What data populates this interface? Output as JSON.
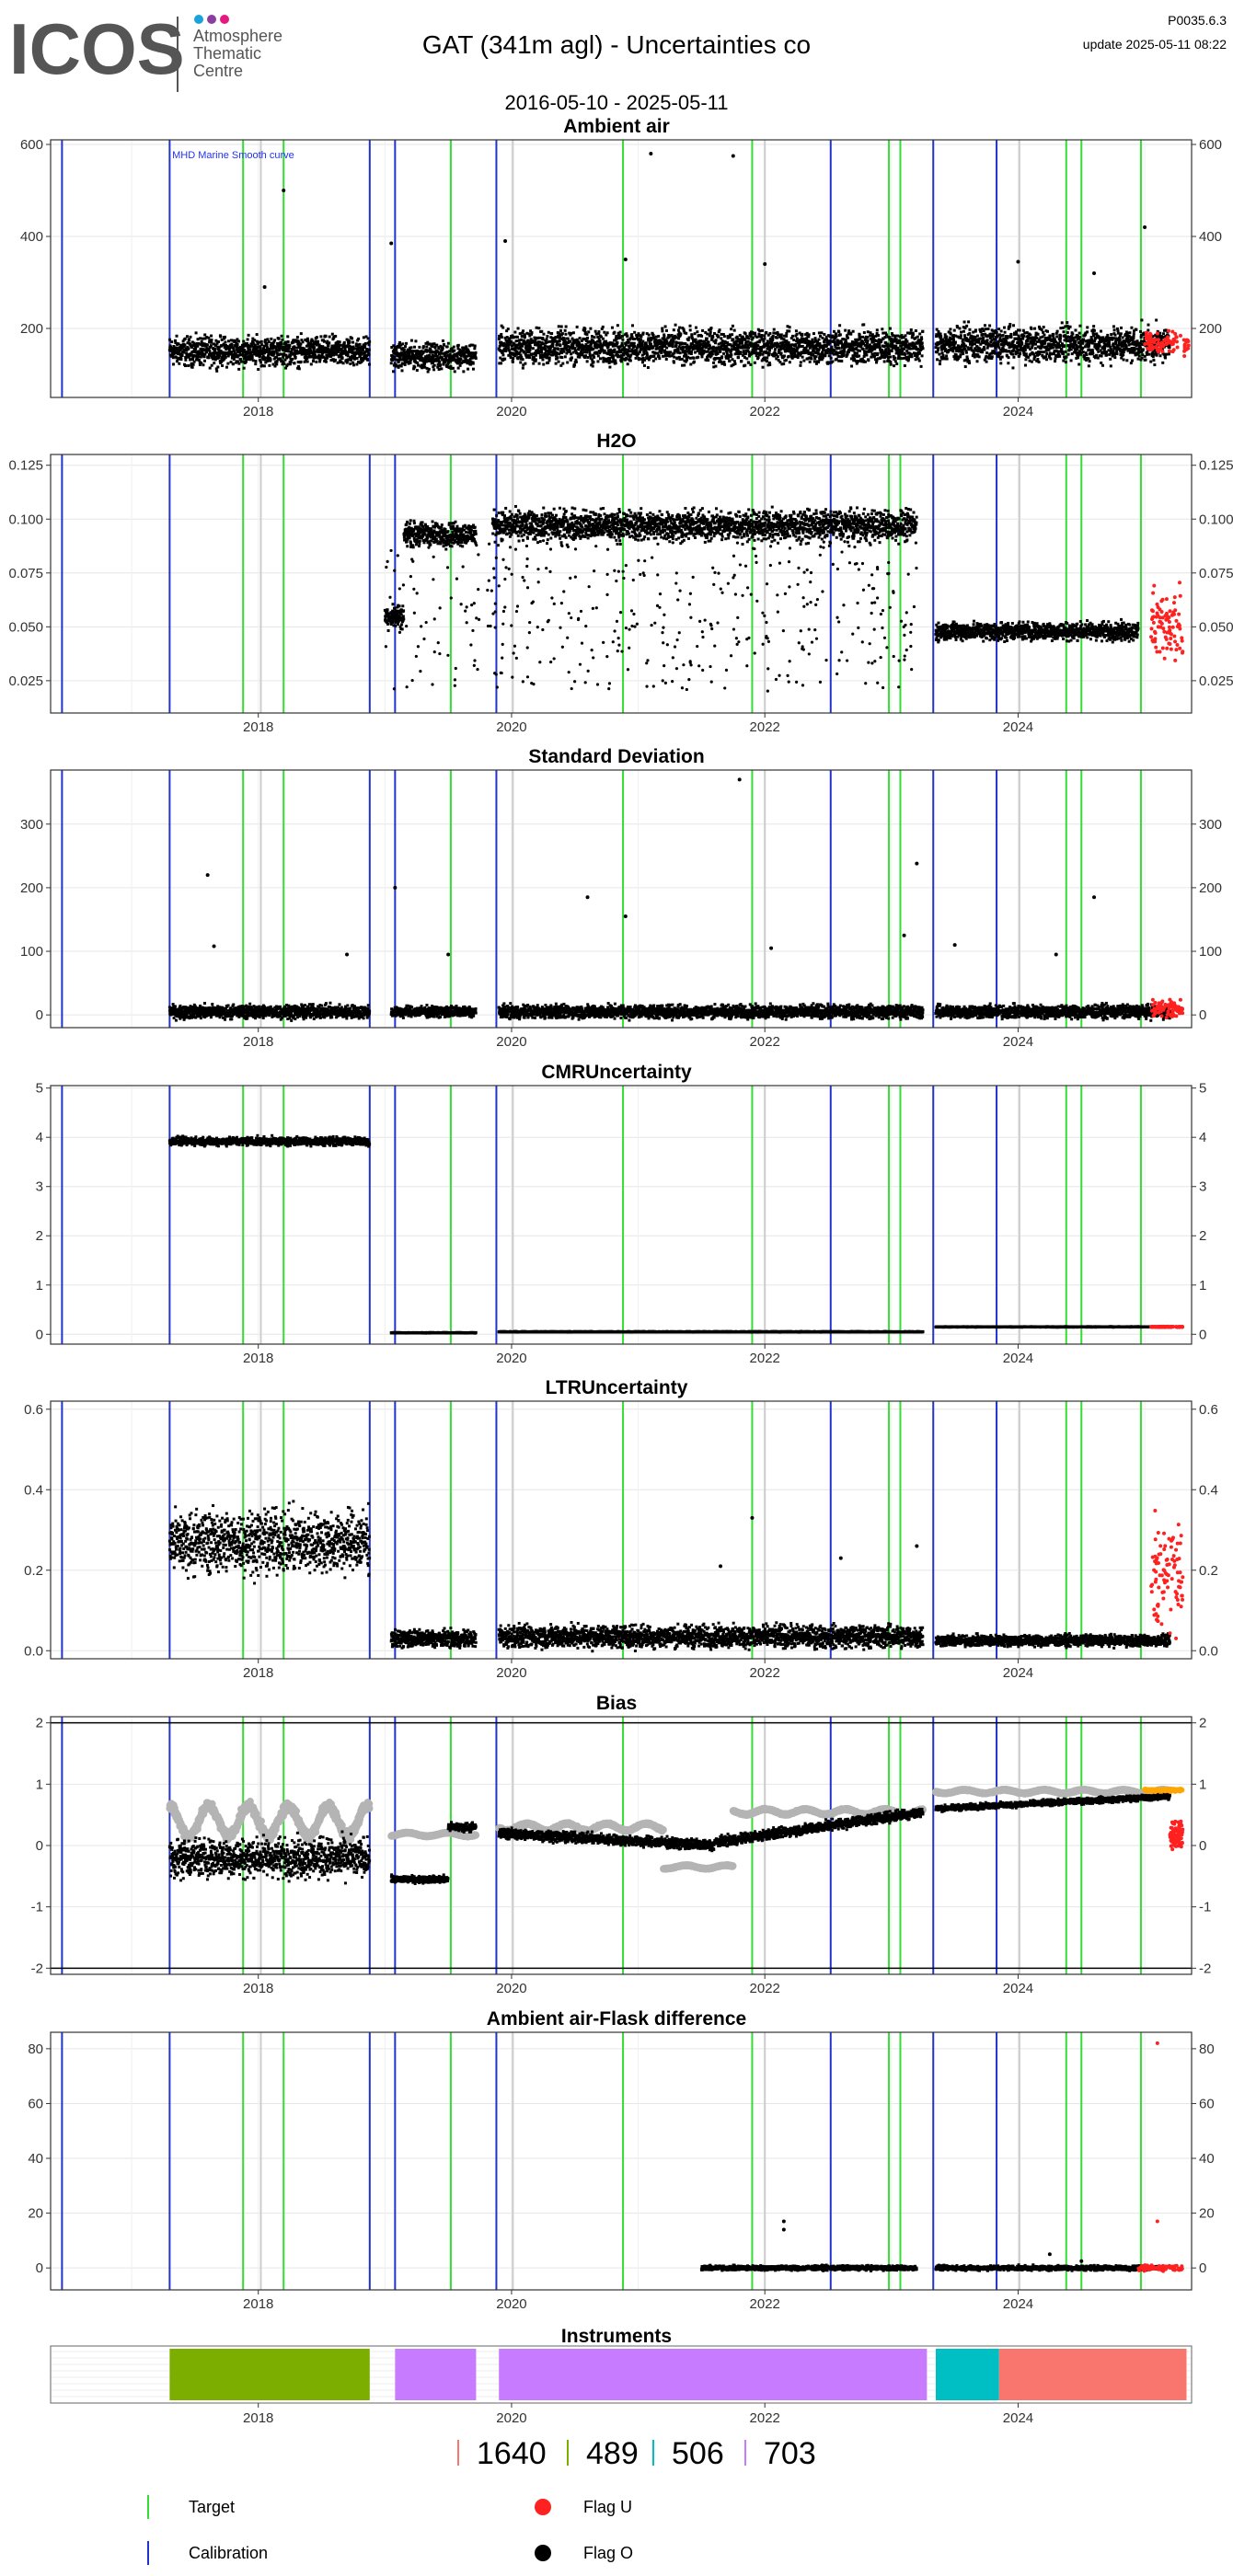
{
  "header": {
    "logo_text": "ICOS",
    "logo_sub1": "Atmosphere",
    "logo_sub2": "Thematic",
    "logo_sub3": "Centre",
    "title": "GAT  (341m agl) - Uncertainties co",
    "date_range": "2016-05-10 - 2025-05-11",
    "version": "P0035.6.3",
    "update": "update  2025-05-11 08:22"
  },
  "colors": {
    "calibration": "#2233cc",
    "target": "#33dd33",
    "grey_line": "#cccccc",
    "flag_u": "#ff2020",
    "flag_o": "#000000",
    "orange": "#ffa500",
    "grey_series": "#b4b4b4"
  },
  "chart_data": [
    {
      "type": "scatter",
      "title": "Ambient air",
      "annotation": "MHD Marine Smooth curve",
      "yticks": [
        200,
        400,
        600
      ],
      "ylim": [
        50,
        610
      ],
      "xticks": [
        "2018",
        "2020",
        "2022",
        "2024"
      ],
      "series_profile": [
        {
          "start": 2017.3,
          "end": 2018.88,
          "base": 150,
          "spread": 45,
          "spikes": [
            [
              2018.2,
              500
            ],
            [
              2018.05,
              290
            ]
          ]
        },
        {
          "start": 2019.05,
          "end": 2019.72,
          "base": 140,
          "spread": 40,
          "spikes": [
            [
              2019.05,
              385
            ]
          ]
        },
        {
          "start": 2019.9,
          "end": 2023.25,
          "base": 160,
          "spread": 55,
          "spikes": [
            [
              2021.1,
              580
            ],
            [
              2021.75,
              575
            ],
            [
              2019.95,
              390
            ],
            [
              2020.9,
              350
            ],
            [
              2022.0,
              340
            ]
          ]
        },
        {
          "start": 2023.35,
          "end": 2025.2,
          "base": 165,
          "spread": 55,
          "spikes": [
            [
              2024.0,
              345
            ],
            [
              2025.0,
              420
            ],
            [
              2024.6,
              320
            ]
          ]
        }
      ],
      "flag_u": {
        "start": 2025.0,
        "end": 2025.35,
        "base": 170,
        "spread": 35
      }
    },
    {
      "type": "scatter",
      "title": "H2O",
      "yticks": [
        0.025,
        0.05,
        0.075,
        0.1,
        0.125
      ],
      "ytick_labels": [
        "0.025",
        "0.050",
        "0.075",
        "0.100",
        "0.125"
      ],
      "ylim": [
        0.01,
        0.13
      ],
      "xticks": [
        "2018",
        "2020",
        "2022",
        "2024"
      ],
      "series_profile": [
        {
          "start": 2019.0,
          "end": 2019.15,
          "base": 0.055,
          "spread": 0.008
        },
        {
          "start": 2019.15,
          "end": 2019.72,
          "base": 0.093,
          "spread": 0.008
        },
        {
          "start": 2019.85,
          "end": 2023.2,
          "base": 0.097,
          "spread": 0.01
        },
        {
          "start": 2023.35,
          "end": 2024.95,
          "base": 0.048,
          "spread": 0.006
        }
      ],
      "sparse_profile": {
        "start": 2019.0,
        "end": 2023.2,
        "low": 0.02,
        "high": 0.09
      },
      "flag_u": {
        "start": 2025.05,
        "end": 2025.3,
        "base": 0.05,
        "spread": 0.025
      }
    },
    {
      "type": "scatter",
      "title": "Standard Deviation",
      "yticks": [
        0,
        100,
        200,
        300
      ],
      "ylim": [
        -20,
        385
      ],
      "xticks": [
        "2018",
        "2020",
        "2022",
        "2024"
      ],
      "series_profile": [
        {
          "start": 2017.3,
          "end": 2018.88,
          "base": 5,
          "spread": 15,
          "spikes": [
            [
              2017.6,
              220
            ],
            [
              2017.65,
              108
            ],
            [
              2018.7,
              95
            ]
          ]
        },
        {
          "start": 2019.05,
          "end": 2019.72,
          "base": 5,
          "spread": 12,
          "spikes": [
            [
              2019.08,
              200
            ],
            [
              2019.5,
              95
            ]
          ]
        },
        {
          "start": 2019.9,
          "end": 2023.25,
          "base": 5,
          "spread": 15,
          "spikes": [
            [
              2021.8,
              370
            ],
            [
              2023.2,
              238
            ],
            [
              2020.6,
              185
            ],
            [
              2020.9,
              155
            ],
            [
              2022.05,
              105
            ],
            [
              2023.1,
              125
            ]
          ]
        },
        {
          "start": 2023.35,
          "end": 2025.2,
          "base": 5,
          "spread": 15,
          "spikes": [
            [
              2024.6,
              185
            ],
            [
              2023.5,
              110
            ],
            [
              2024.3,
              95
            ]
          ]
        }
      ],
      "flag_u": {
        "start": 2025.05,
        "end": 2025.3,
        "base": 10,
        "spread": 20
      }
    },
    {
      "type": "scatter",
      "title": "CMRUncertainty",
      "yticks": [
        0,
        1,
        2,
        3,
        4,
        5
      ],
      "ylim": [
        -0.2,
        5.05
      ],
      "xticks": [
        "2018",
        "2020",
        "2022",
        "2024"
      ],
      "series_profile": [
        {
          "start": 2017.3,
          "end": 2018.88,
          "base": 3.92,
          "spread": 0.12
        },
        {
          "start": 2019.05,
          "end": 2019.72,
          "base": 0.03,
          "spread": 0.01
        },
        {
          "start": 2019.9,
          "end": 2023.25,
          "base": 0.05,
          "spread": 0.01
        },
        {
          "start": 2023.35,
          "end": 2025.2,
          "base": 0.15,
          "spread": 0.01
        }
      ],
      "flag_u": {
        "start": 2025.05,
        "end": 2025.3,
        "base": 0.15,
        "spread": 0.01
      }
    },
    {
      "type": "scatter",
      "title": "LTRUncertainty",
      "yticks": [
        0,
        0.2,
        0.4,
        0.6
      ],
      "ytick_labels": [
        "0.0",
        "0.2",
        "0.4",
        "0.6"
      ],
      "ylim": [
        -0.02,
        0.62
      ],
      "xticks": [
        "2018",
        "2020",
        "2022",
        "2024"
      ],
      "series_profile": [
        {
          "start": 2017.3,
          "end": 2018.88,
          "base": 0.27,
          "spread": 0.11
        },
        {
          "start": 2019.05,
          "end": 2019.72,
          "base": 0.03,
          "spread": 0.03
        },
        {
          "start": 2019.9,
          "end": 2023.25,
          "base": 0.035,
          "spread": 0.04,
          "spikes": [
            [
              2021.9,
              0.33
            ],
            [
              2021.65,
              0.21
            ],
            [
              2022.6,
              0.23
            ],
            [
              2023.2,
              0.26
            ]
          ]
        },
        {
          "start": 2023.35,
          "end": 2025.2,
          "base": 0.025,
          "spread": 0.02
        }
      ],
      "flag_u": {
        "start": 2025.05,
        "end": 2025.3,
        "base": 0.2,
        "spread": 0.2
      }
    },
    {
      "type": "scatter",
      "title": "Bias",
      "yticks": [
        -2,
        -1,
        0,
        1,
        2
      ],
      "ylim": [
        -2.1,
        2.1
      ],
      "xticks": [
        "2018",
        "2020",
        "2022",
        "2024"
      ],
      "hlines": [
        -2,
        2
      ],
      "series_profile": [
        {
          "start": 2017.3,
          "end": 2018.88,
          "base": -0.2,
          "spread": 0.45
        },
        {
          "start": 2019.05,
          "end": 2019.5,
          "base": -0.55,
          "spread": 0.08
        },
        {
          "start": 2019.5,
          "end": 2019.72,
          "base": 0.3,
          "spread": 0.1
        },
        {
          "start": 2019.9,
          "end": 2021.6,
          "base": 0.2,
          "spread": 0.12,
          "trend": -0.2
        },
        {
          "start": 2021.6,
          "end": 2023.25,
          "base": 0.05,
          "spread": 0.12,
          "trend": 0.5
        },
        {
          "start": 2023.35,
          "end": 2025.2,
          "base": 0.6,
          "spread": 0.07,
          "trend": 0.2
        }
      ],
      "grey_profile": [
        {
          "start": 2017.3,
          "end": 2018.88,
          "base": 0.4,
          "spread": 0.35
        },
        {
          "start": 2019.05,
          "end": 2019.72,
          "base": 0.18,
          "spread": 0.04
        },
        {
          "start": 2019.9,
          "end": 2021.2,
          "base": 0.3,
          "spread": 0.08
        },
        {
          "start": 2021.2,
          "end": 2021.75,
          "base": -0.35,
          "spread": 0.04
        },
        {
          "start": 2021.75,
          "end": 2023.25,
          "base": 0.55,
          "spread": 0.06
        },
        {
          "start": 2023.35,
          "end": 2025.2,
          "base": 0.88,
          "spread": 0.04
        }
      ],
      "orange": {
        "start": 2025.0,
        "end": 2025.3,
        "base": 0.9
      },
      "flag_u": {
        "start": 2025.2,
        "end": 2025.3,
        "base": 0.2,
        "spread": 0.35
      }
    },
    {
      "type": "scatter",
      "title": "Ambient air-Flask difference",
      "yticks": [
        0,
        20,
        40,
        60,
        80
      ],
      "ylim": [
        -8,
        86
      ],
      "xticks": [
        "2018",
        "2020",
        "2022",
        "2024"
      ],
      "series_profile": [
        {
          "start": 2021.5,
          "end": 2023.2,
          "base": 0,
          "spread": 1.2,
          "spikes": [
            [
              2022.15,
              17
            ],
            [
              2022.15,
              14
            ]
          ]
        },
        {
          "start": 2023.35,
          "end": 2025.1,
          "base": 0,
          "spread": 1.2,
          "spikes": [
            [
              2024.25,
              5
            ],
            [
              2024.5,
              2.5
            ]
          ]
        }
      ],
      "flag_u": {
        "start": 2024.95,
        "end": 2025.3,
        "base": 0,
        "spread": 1.5,
        "spikes": [
          [
            2025.1,
            82
          ],
          [
            2025.1,
            17
          ]
        ]
      }
    }
  ],
  "time_axis": {
    "xlim": [
      2016.36,
      2025.37
    ]
  },
  "calibration_dates": [
    2016.45,
    2017.3,
    2018.88,
    2019.08,
    2019.88,
    2022.52,
    2023.33,
    2023.83
  ],
  "target_dates": [
    2017.88,
    2018.2,
    2019.52,
    2020.88,
    2021.9,
    2022.98,
    2023.07,
    2024.38,
    2024.5,
    2024.97
  ],
  "grey_dates": [
    2018.02,
    2020.01,
    2022.0,
    2024.01
  ],
  "instruments": {
    "title": "Instruments",
    "bars": [
      {
        "start": 2017.3,
        "end": 2018.88,
        "color": "#7cae00",
        "id": "489"
      },
      {
        "start": 2019.08,
        "end": 2019.72,
        "color": "#c77cff",
        "id": "703"
      },
      {
        "start": 2019.9,
        "end": 2023.28,
        "color": "#c77cff",
        "id": "703"
      },
      {
        "start": 2023.35,
        "end": 2023.85,
        "color": "#00bfc4",
        "id": "506"
      },
      {
        "start": 2023.85,
        "end": 2025.33,
        "color": "#f8766d",
        "id": "1640"
      }
    ],
    "ticks": [
      "2018",
      "2020",
      "2022",
      "2024"
    ],
    "legend": [
      {
        "label": "1640",
        "color": "#f8766d"
      },
      {
        "label": "489",
        "color": "#7cae00"
      },
      {
        "label": "506",
        "color": "#00bfc4"
      },
      {
        "label": "703",
        "color": "#c77cff"
      }
    ]
  },
  "legend": {
    "target": "Target",
    "calibration": "Calibration",
    "flag_u": "Flag U",
    "flag_o": "Flag O"
  }
}
